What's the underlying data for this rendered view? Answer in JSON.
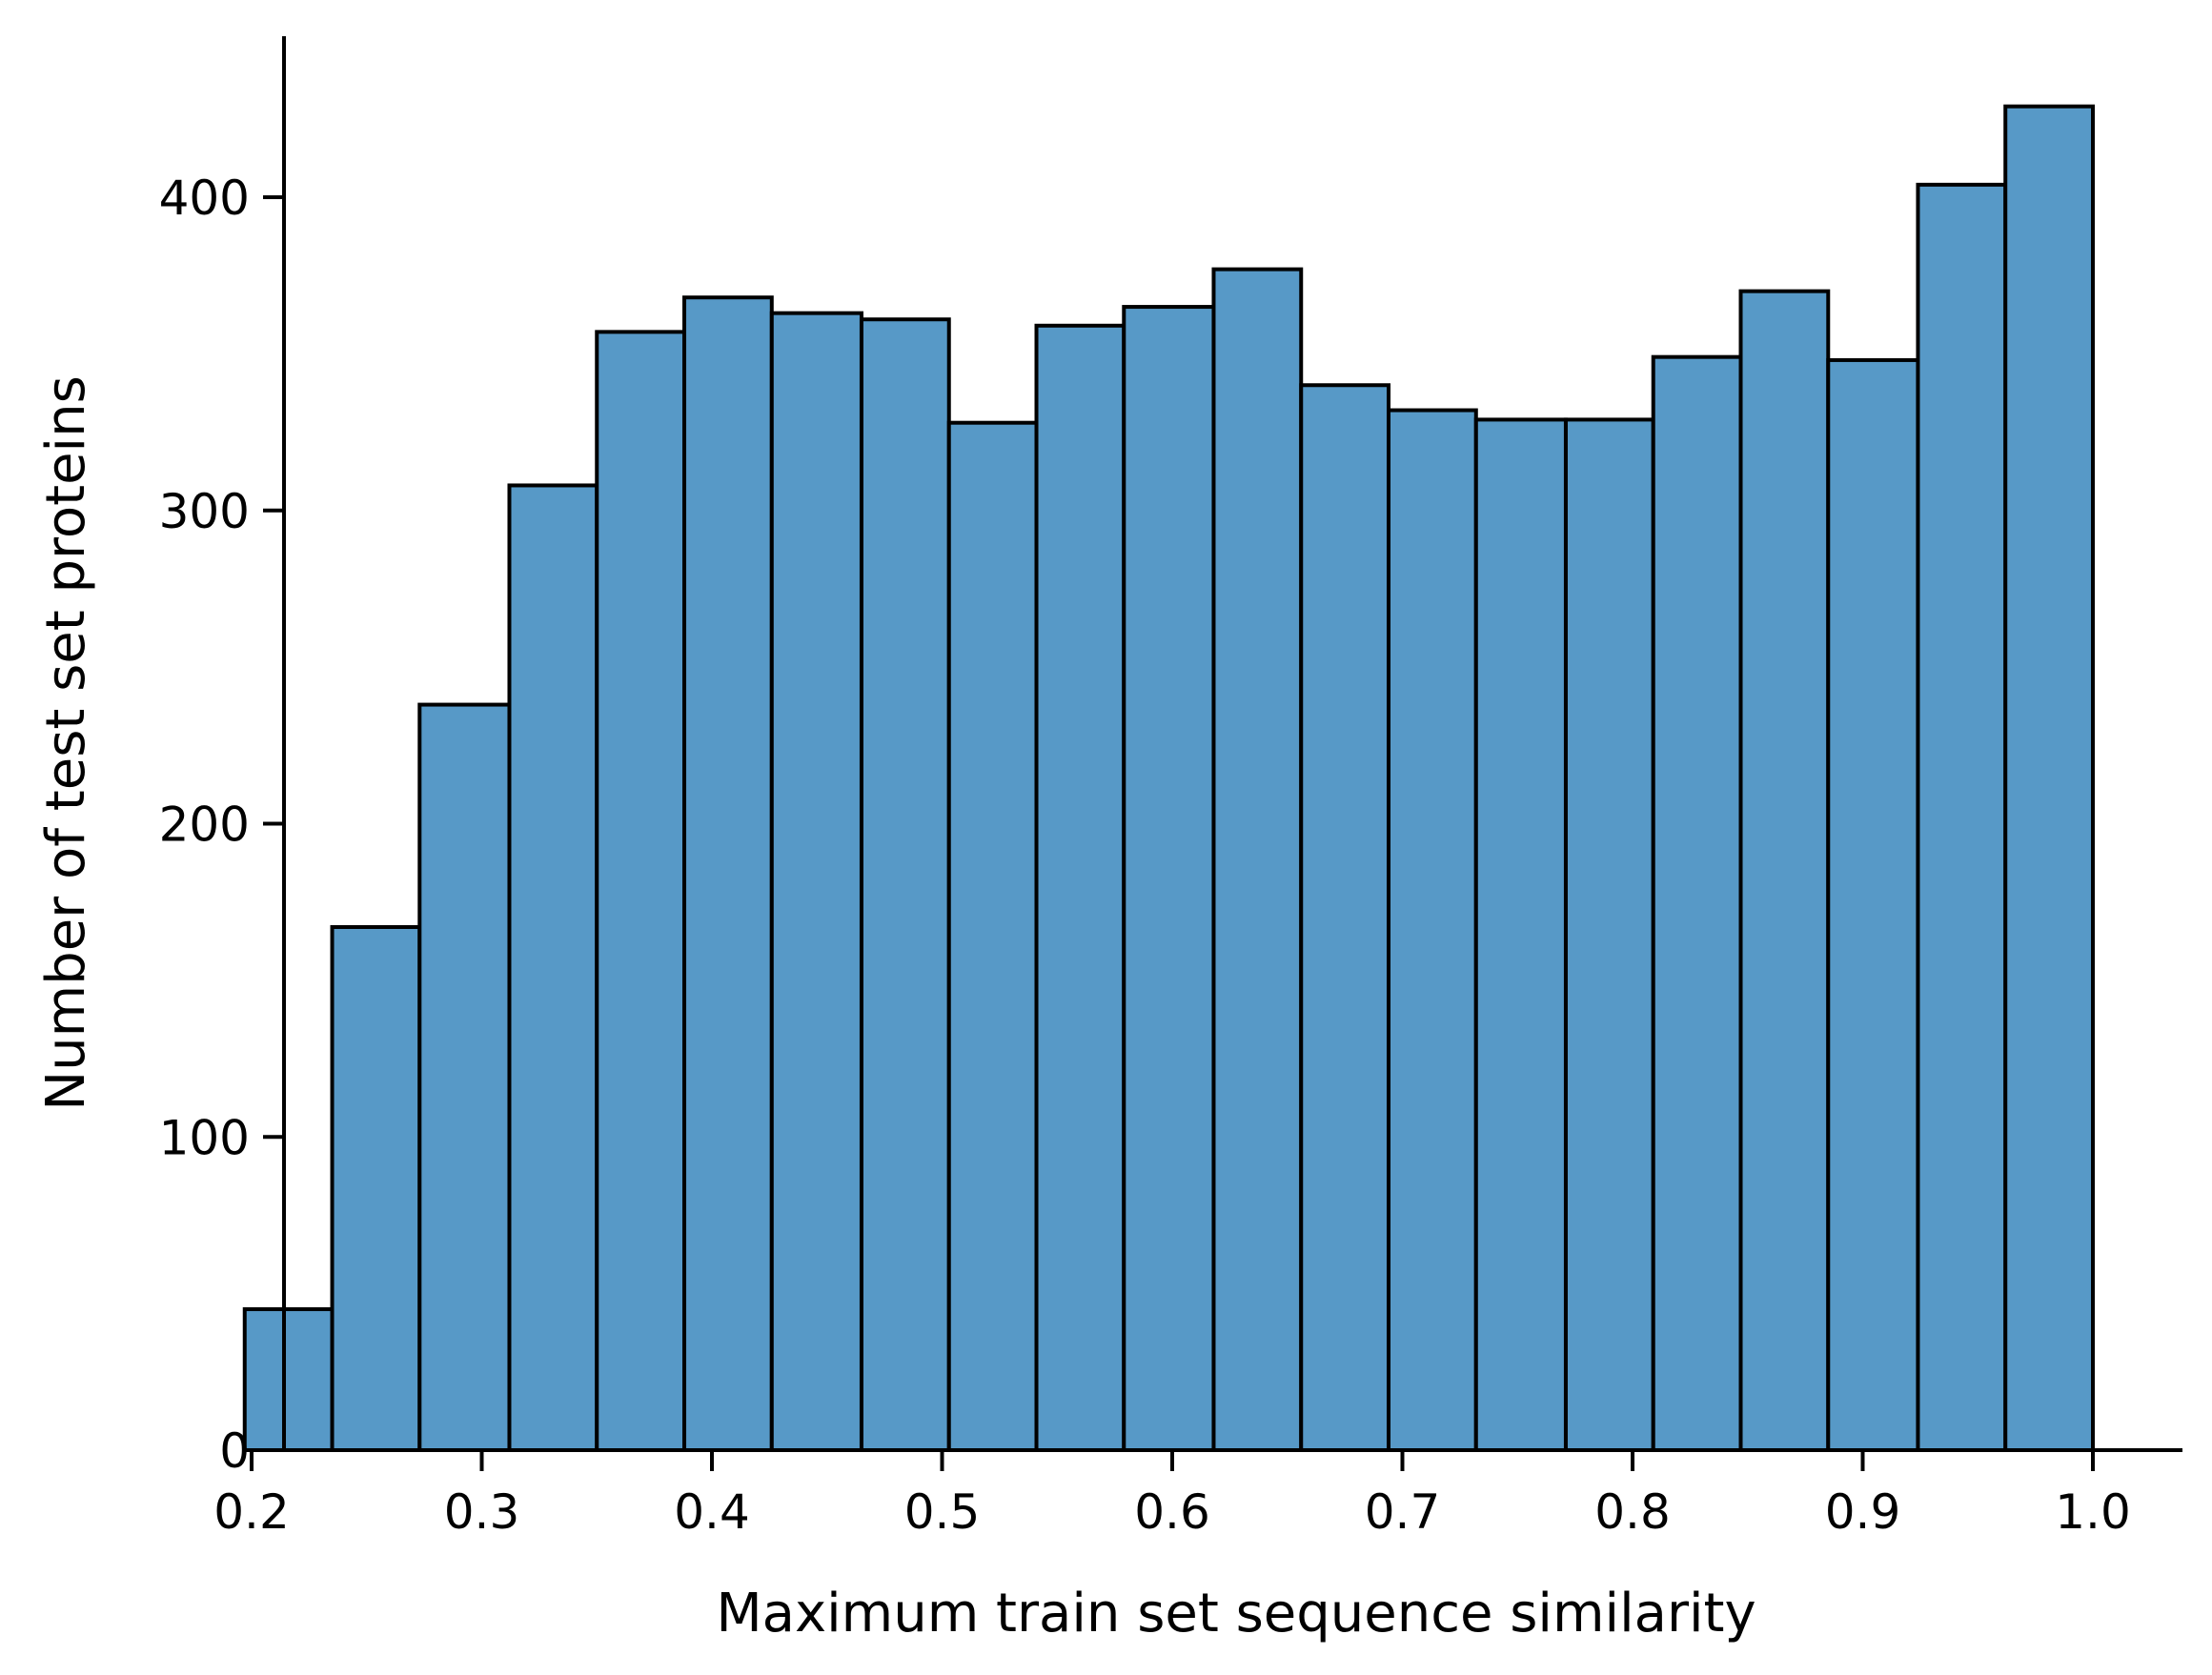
{
  "chart_data": {
    "type": "bar",
    "xlabel": "Maximum train set sequence similarity",
    "ylabel": "Number of test set proteins",
    "xlim": [
      0.16,
      1.04
    ],
    "ylim": [
      0,
      450
    ],
    "x_ticks": [
      "0.2",
      "0.3",
      "0.4",
      "0.5",
      "0.6",
      "0.7",
      "0.8",
      "0.9",
      "1.0"
    ],
    "y_ticks": [
      "0",
      "100",
      "200",
      "300",
      "400"
    ],
    "bin_edges": [
      0.197,
      0.235,
      0.273,
      0.312,
      0.35,
      0.388,
      0.426,
      0.465,
      0.503,
      0.541,
      0.579,
      0.618,
      0.656,
      0.694,
      0.732,
      0.771,
      0.809,
      0.847,
      0.885,
      0.924,
      0.962,
      1.0
    ],
    "values": [
      45,
      167,
      238,
      308,
      357,
      368,
      363,
      361,
      328,
      359,
      365,
      377,
      340,
      332,
      329,
      329,
      349,
      370,
      348,
      404,
      429
    ],
    "bar_color": "#5799c7",
    "edge_color": "#000000",
    "grid": false,
    "legend": "none"
  }
}
